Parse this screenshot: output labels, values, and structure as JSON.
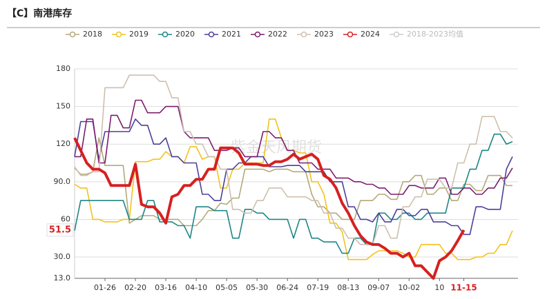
{
  "chart_data": {
    "type": "line",
    "title": "【C】南港库存",
    "watermark": "紫金天风期货",
    "current_value": 51.5,
    "ylim": [
      13,
      180
    ],
    "yticks": [
      {
        "value": 13,
        "label": "13.0"
      },
      {
        "value": 30,
        "label": "30.0"
      },
      60,
      {
        "value": 90,
        "label": "90.0"
      },
      120,
      150,
      180
    ],
    "grid": true,
    "legend": "top",
    "categories": [
      null,
      null,
      null,
      null,
      null,
      "01-26",
      null,
      null,
      null,
      null,
      "02-20",
      null,
      null,
      null,
      null,
      "03-16",
      null,
      null,
      null,
      null,
      "04-10",
      null,
      null,
      null,
      null,
      "05-05",
      null,
      null,
      null,
      null,
      "05-30",
      null,
      null,
      null,
      null,
      "06-24",
      null,
      null,
      null,
      null,
      "07-19",
      null,
      null,
      null,
      null,
      "08-13",
      null,
      null,
      null,
      null,
      "09-07",
      null,
      null,
      null,
      null,
      "10-02",
      null,
      null,
      null,
      null,
      "10",
      null,
      null,
      null,
      "11-15",
      null,
      null,
      null,
      null,
      null,
      null,
      null,
      null
    ],
    "series": [
      {
        "name": "2018",
        "color": "#b3a978",
        "values": [
          101,
          96,
          96,
          98,
          125,
          103,
          103,
          103,
          103,
          57,
          60,
          63,
          63,
          63,
          60,
          60,
          60,
          60,
          55,
          55,
          55,
          60,
          67,
          67,
          73,
          72,
          77,
          77,
          100,
          100,
          100,
          100,
          98,
          100,
          100,
          100,
          98,
          98,
          98,
          80,
          70,
          70,
          65,
          65,
          60,
          60,
          60,
          75,
          75,
          75,
          80,
          80,
          76,
          76,
          90,
          90,
          95,
          95,
          80,
          80,
          85,
          85,
          75,
          75,
          88,
          88,
          83,
          83,
          95,
          95,
          95,
          87,
          87
        ]
      },
      {
        "name": "2019",
        "color": "#f2c21a",
        "values": [
          88,
          85,
          85,
          60,
          60,
          58,
          58,
          58,
          60,
          60,
          106,
          106,
          106,
          108,
          108,
          114,
          110,
          110,
          105,
          118,
          118,
          108,
          110,
          110,
          85,
          85,
          100,
          100,
          105,
          105,
          105,
          105,
          140,
          140,
          125,
          115,
          115,
          113,
          113,
          90,
          90,
          80,
          57,
          57,
          50,
          28,
          28,
          28,
          28,
          32,
          35,
          35,
          35,
          35,
          33,
          30,
          30,
          40,
          40,
          40,
          40,
          33,
          33,
          28,
          28,
          28,
          30,
          30,
          33,
          33,
          40,
          40,
          51
        ]
      },
      {
        "name": "2020",
        "color": "#1e8585",
        "values": [
          51,
          75,
          75,
          75,
          75,
          75,
          75,
          75,
          75,
          60,
          60,
          60,
          75,
          75,
          58,
          58,
          58,
          55,
          55,
          45,
          70,
          70,
          70,
          67,
          67,
          67,
          45,
          45,
          68,
          68,
          65,
          65,
          60,
          60,
          60,
          60,
          45,
          60,
          60,
          45,
          45,
          42,
          42,
          42,
          33,
          33,
          45,
          45,
          40,
          40,
          65,
          65,
          60,
          60,
          65,
          65,
          60,
          60,
          65,
          65,
          65,
          65,
          85,
          85,
          85,
          100,
          100,
          115,
          115,
          128,
          128,
          120,
          122
        ]
      },
      {
        "name": "2021",
        "color": "#4a3f9a",
        "values": [
          110,
          138,
          138,
          138,
          108,
          130,
          130,
          130,
          130,
          130,
          140,
          135,
          135,
          120,
          120,
          125,
          110,
          110,
          105,
          105,
          105,
          80,
          80,
          75,
          75,
          100,
          100,
          105,
          105,
          110,
          110,
          110,
          102,
          102,
          102,
          103,
          103,
          103,
          98,
          98,
          98,
          98,
          90,
          90,
          90,
          70,
          70,
          60,
          60,
          58,
          65,
          58,
          58,
          68,
          68,
          63,
          63,
          68,
          68,
          58,
          58,
          58,
          55,
          55,
          48,
          48,
          70,
          70,
          68,
          68,
          68,
          100,
          110
        ]
      },
      {
        "name": "2022",
        "color": "#7b1c6c",
        "values": [
          110,
          110,
          140,
          140,
          105,
          105,
          143,
          143,
          133,
          133,
          155,
          155,
          145,
          145,
          145,
          150,
          150,
          150,
          130,
          125,
          125,
          125,
          125,
          115,
          115,
          115,
          117,
          117,
          110,
          110,
          110,
          130,
          130,
          125,
          125,
          115,
          115,
          105,
          105,
          105,
          100,
          100,
          100,
          93,
          93,
          93,
          90,
          90,
          88,
          88,
          85,
          85,
          80,
          80,
          80,
          87,
          87,
          85,
          85,
          85,
          93,
          93,
          80,
          80,
          85,
          85,
          80,
          80,
          85,
          85,
          93,
          93,
          101
        ]
      },
      {
        "name": "2023",
        "color": "#cdbfae",
        "values": [
          102,
          95,
          95,
          98,
          98,
          165,
          165,
          165,
          165,
          175,
          175,
          175,
          175,
          175,
          170,
          170,
          157,
          157,
          130,
          130,
          120,
          120,
          110,
          110,
          100,
          100,
          68,
          68,
          65,
          65,
          75,
          75,
          85,
          85,
          85,
          78,
          78,
          78,
          78,
          75,
          75,
          65,
          65,
          53,
          53,
          45,
          45,
          40,
          40,
          40,
          55,
          55,
          45,
          45,
          70,
          70,
          78,
          78,
          92,
          92,
          92,
          85,
          85,
          105,
          105,
          120,
          120,
          142,
          142,
          142,
          130,
          130,
          125
        ]
      },
      {
        "name": "2024",
        "color": "#d62020",
        "values": [
          125,
          115,
          105,
          100,
          100,
          97,
          87,
          87,
          87,
          87,
          104,
          72,
          70,
          70,
          65,
          57,
          78,
          80,
          87,
          87,
          92,
          92,
          100,
          100,
          117,
          117,
          117,
          113,
          104,
          104,
          104,
          103,
          103,
          106,
          106,
          108,
          112,
          108,
          110,
          112,
          108,
          95,
          92,
          85,
          73,
          65,
          55,
          47,
          42,
          40,
          40,
          37,
          33,
          33,
          30,
          33,
          23,
          23,
          18,
          13,
          27,
          30,
          35,
          43,
          51.5,
          null,
          null,
          null,
          null,
          null,
          null,
          null,
          null
        ]
      },
      {
        "name": "2018-2023均值",
        "color": "#d0d0d0",
        "visible": false
      }
    ]
  }
}
